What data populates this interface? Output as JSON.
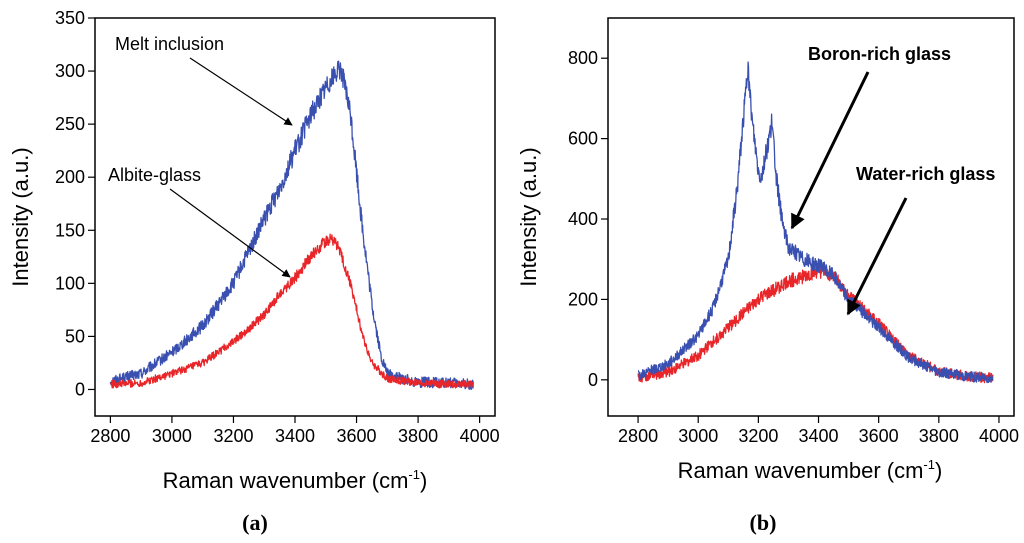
{
  "chart_data": [
    {
      "type": "line",
      "panel_label": "(a)",
      "xlabel": "Raman wavenumber (cm",
      "xlabel_sup": "-1",
      "xlabel_end": ")",
      "ylabel": "Intensity (a.u.)",
      "xlim": [
        2750,
        4050
      ],
      "ylim": [
        -25,
        350
      ],
      "xticks": [
        2800,
        3000,
        3200,
        3400,
        3600,
        3800,
        4000
      ],
      "yticks": [
        0,
        50,
        100,
        150,
        200,
        250,
        300,
        350
      ],
      "series": [
        {
          "name": "Melt inclusion",
          "color": "#3a50b0",
          "noise": 7,
          "x": [
            2800,
            2900,
            3000,
            3100,
            3200,
            3250,
            3300,
            3350,
            3400,
            3450,
            3500,
            3530,
            3550,
            3580,
            3620,
            3650,
            3680,
            3700,
            3750,
            3800,
            3900,
            3980
          ],
          "y": [
            8,
            15,
            35,
            60,
            100,
            130,
            160,
            190,
            225,
            258,
            285,
            298,
            302,
            260,
            150,
            80,
            30,
            15,
            10,
            7,
            6,
            5
          ]
        },
        {
          "name": "Albite-glass",
          "color": "#e8262a",
          "noise": 5,
          "x": [
            2800,
            2900,
            3000,
            3100,
            3200,
            3300,
            3350,
            3400,
            3450,
            3500,
            3520,
            3540,
            3580,
            3620,
            3650,
            3700,
            3800,
            3900,
            3980
          ],
          "y": [
            5,
            6,
            15,
            25,
            45,
            70,
            90,
            105,
            125,
            140,
            142,
            135,
            100,
            50,
            25,
            10,
            6,
            5,
            5
          ]
        }
      ],
      "annotations": [
        {
          "text": "Melt inclusion",
          "target": [
            3480,
            230
          ]
        },
        {
          "text": "Albite-glass",
          "target": [
            3450,
            95
          ]
        }
      ]
    },
    {
      "type": "line",
      "panel_label": "(b)",
      "xlabel": "Raman wavenumber (cm",
      "xlabel_sup": "-1",
      "xlabel_end": ")",
      "ylabel": "Intensity (a.u.)",
      "xlim": [
        2700,
        4050
      ],
      "ylim": [
        -90,
        900
      ],
      "xticks": [
        2800,
        3000,
        3200,
        3400,
        3600,
        3800,
        4000
      ],
      "yticks": [
        0,
        200,
        400,
        600,
        800
      ],
      "series": [
        {
          "name": "Water-rich glass",
          "color": "#e8262a",
          "noise": 18,
          "x": [
            2800,
            2900,
            3000,
            3100,
            3200,
            3300,
            3400,
            3450,
            3500,
            3600,
            3700,
            3800,
            3900,
            3980
          ],
          "y": [
            5,
            20,
            60,
            130,
            200,
            245,
            270,
            260,
            210,
            140,
            60,
            20,
            8,
            5
          ]
        },
        {
          "name": "Boron-rich glass",
          "color": "#3a50b0",
          "noise": 18,
          "x": [
            2800,
            2900,
            3000,
            3050,
            3100,
            3130,
            3150,
            3165,
            3180,
            3200,
            3210,
            3230,
            3245,
            3260,
            3280,
            3300,
            3350,
            3400,
            3450,
            3500,
            3600,
            3700,
            3800,
            3900,
            3980
          ],
          "y": [
            10,
            40,
            110,
            180,
            300,
            480,
            650,
            775,
            640,
            520,
            505,
            580,
            640,
            500,
            390,
            330,
            300,
            285,
            260,
            200,
            130,
            55,
            20,
            8,
            5
          ]
        }
      ],
      "annotations": [
        {
          "text": "Boron-rich glass",
          "target": [
            3310,
            360
          ]
        },
        {
          "text": "Water-rich glass",
          "target": [
            3500,
            160
          ]
        }
      ]
    }
  ]
}
